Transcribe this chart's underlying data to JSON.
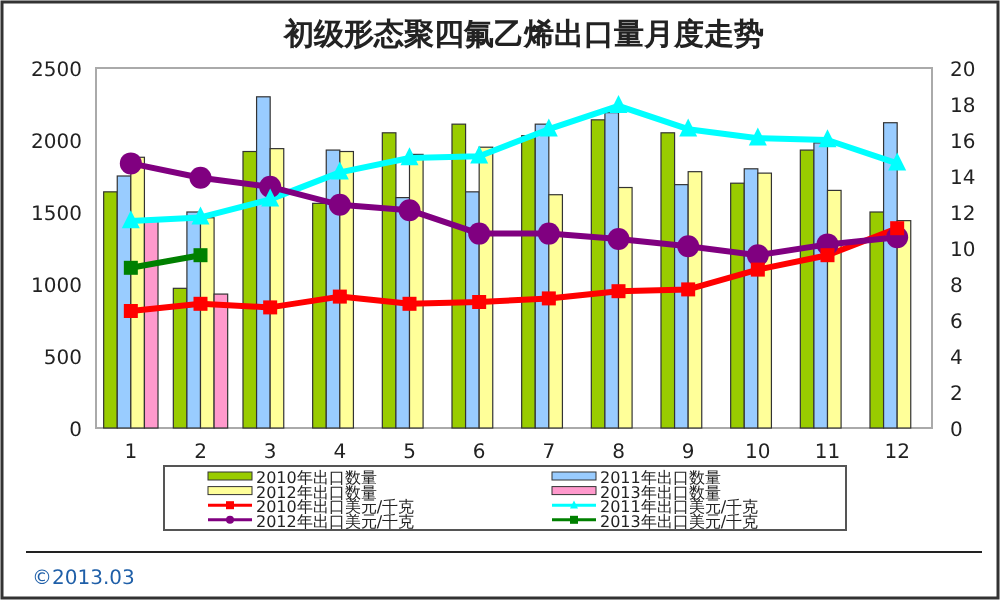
{
  "chart_data": {
    "type": "bar",
    "title": "初级形态聚四氟乙烯出口量月度走势",
    "categories": [
      "1",
      "2",
      "3",
      "4",
      "5",
      "6",
      "7",
      "8",
      "9",
      "10",
      "11",
      "12"
    ],
    "series": [
      {
        "name": "2010年出口数量",
        "color": "#99cc00",
        "values": [
          1640,
          970,
          1920,
          1560,
          2050,
          2110,
          2030,
          2140,
          2050,
          1700,
          1930,
          1500
        ]
      },
      {
        "name": "2011年出口数量",
        "color": "#99ccff",
        "values": [
          1750,
          1500,
          2300,
          1930,
          1600,
          1640,
          2110,
          2190,
          1690,
          1800,
          1980,
          2120
        ]
      },
      {
        "name": "2012年出口数量",
        "color": "#ffff99",
        "values": [
          1880,
          1460,
          1940,
          1920,
          1900,
          1950,
          1620,
          1670,
          1780,
          1770,
          1650,
          1440
        ]
      },
      {
        "name": "2013年出口数量",
        "color": "#ff99cc",
        "values": [
          1440,
          930,
          null,
          null,
          null,
          null,
          null,
          null,
          null,
          null,
          null,
          null
        ]
      },
      {
        "name": "2010年出口美元/千克",
        "type": "line",
        "axis": "y2",
        "marker": "square",
        "color": "#ff0000",
        "values": [
          6.5,
          6.9,
          6.7,
          7.3,
          6.9,
          7.0,
          7.2,
          7.6,
          7.7,
          8.8,
          9.6,
          11.1
        ]
      },
      {
        "name": "2011年出口美元/千克",
        "type": "line",
        "axis": "y2",
        "marker": "triangle",
        "color": "#00ffff",
        "values": [
          11.5,
          11.7,
          12.7,
          14.2,
          15.0,
          15.1,
          16.6,
          17.9,
          16.6,
          16.1,
          16.0,
          14.7
        ]
      },
      {
        "name": "2012年出口美元/千克",
        "type": "line",
        "axis": "y2",
        "marker": "circle",
        "color": "#800080",
        "values": [
          14.7,
          13.9,
          13.4,
          12.4,
          12.1,
          10.8,
          10.8,
          10.5,
          10.1,
          9.6,
          10.2,
          10.6
        ]
      },
      {
        "name": "2013年出口美元/千克",
        "type": "line",
        "axis": "y2",
        "marker": "square",
        "color": "#008000",
        "values": [
          8.9,
          9.6,
          null,
          null,
          null,
          null,
          null,
          null,
          null,
          null,
          null,
          null
        ]
      }
    ],
    "ylim": [
      0,
      2500
    ],
    "yticks": [
      0,
      500,
      1000,
      1500,
      2000,
      2500
    ],
    "y2lim": [
      0,
      20
    ],
    "y2ticks": [
      0,
      2,
      4,
      6,
      8,
      10,
      12,
      14,
      16,
      18,
      20
    ],
    "legend": "bottom",
    "grid": false,
    "annotations": [
      "©2013.03"
    ]
  }
}
